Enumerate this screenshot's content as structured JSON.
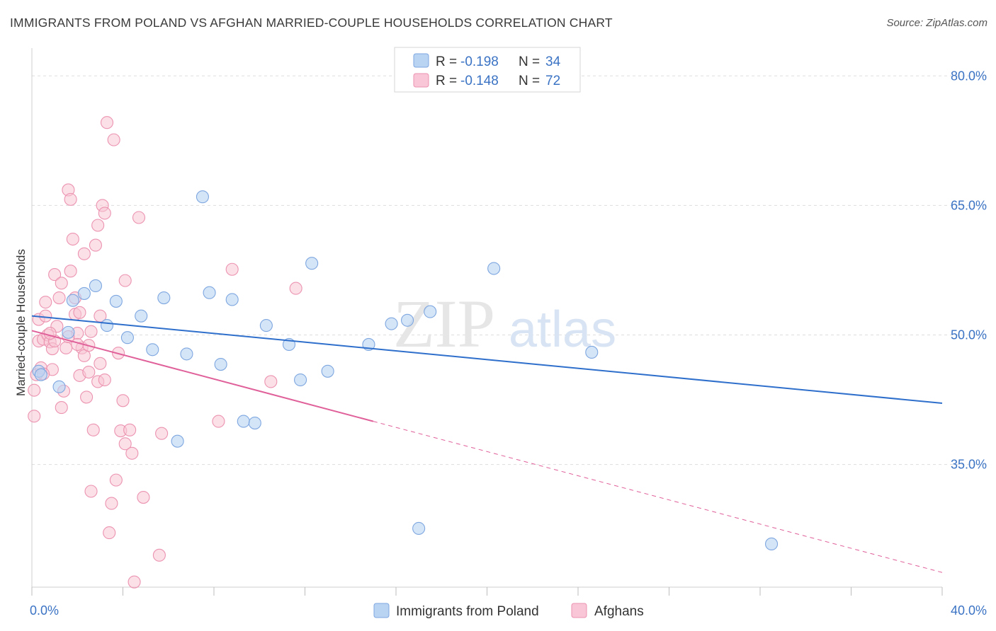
{
  "title": "IMMIGRANTS FROM POLAND VS AFGHAN MARRIED-COUPLE HOUSEHOLDS CORRELATION CHART",
  "source": "Source: ZipAtlas.com",
  "watermark": {
    "zip": "ZIP",
    "atlas": "atlas"
  },
  "colors": {
    "blue_fill": "#b9d3f3",
    "blue_stroke": "#7ea7e0",
    "blue_line": "#2f6fcc",
    "pink_fill": "#f8c6d6",
    "pink_stroke": "#ec93b0",
    "pink_line": "#e0609a",
    "accent_text": "#3b73c4",
    "grid": "#dddddd"
  },
  "legend": {
    "r_label": "R =",
    "n_label": "N =",
    "entries": [
      {
        "r": "-0.198",
        "n": "34"
      },
      {
        "r": "-0.148",
        "n": "72"
      }
    ]
  },
  "chart_data": {
    "type": "scatter",
    "title": "IMMIGRANTS FROM POLAND VS AFGHAN MARRIED-COUPLE HOUSEHOLDS CORRELATION CHART",
    "xlabel": "",
    "ylabel": "Married-couple Households",
    "xlim": [
      0,
      40
    ],
    "ylim": [
      20.8,
      82.4
    ],
    "x_tick_labels": [
      "0.0%",
      "40.0%"
    ],
    "x_tick_values": [
      0,
      40
    ],
    "y_tick_labels": [
      "80.0%",
      "65.0%",
      "50.0%",
      "35.0%"
    ],
    "y_tick_values": [
      80,
      65,
      50,
      35
    ],
    "series": [
      {
        "name": "Immigrants from Poland",
        "color": "blue",
        "points": [
          [
            0.3,
            45.8
          ],
          [
            1.2,
            44.0
          ],
          [
            1.6,
            50.3
          ],
          [
            1.8,
            54.0
          ],
          [
            2.3,
            54.8
          ],
          [
            2.8,
            55.7
          ],
          [
            3.3,
            51.1
          ],
          [
            3.7,
            53.9
          ],
          [
            4.2,
            49.7
          ],
          [
            4.8,
            52.2
          ],
          [
            5.3,
            48.3
          ],
          [
            5.8,
            54.3
          ],
          [
            6.4,
            37.7
          ],
          [
            6.8,
            47.8
          ],
          [
            7.5,
            66.0
          ],
          [
            7.8,
            54.9
          ],
          [
            8.3,
            46.6
          ],
          [
            8.8,
            54.1
          ],
          [
            9.3,
            40.0
          ],
          [
            9.8,
            39.8
          ],
          [
            10.3,
            51.1
          ],
          [
            11.3,
            48.9
          ],
          [
            11.8,
            44.8
          ],
          [
            12.3,
            58.3
          ],
          [
            13.0,
            45.8
          ],
          [
            14.8,
            48.9
          ],
          [
            15.8,
            51.3
          ],
          [
            16.5,
            51.7
          ],
          [
            17.0,
            27.6
          ],
          [
            17.5,
            52.7
          ],
          [
            20.3,
            57.7
          ],
          [
            24.6,
            48.0
          ],
          [
            32.5,
            25.8
          ],
          [
            0.4,
            45.4
          ]
        ],
        "trend": {
          "x0": 0,
          "y0": 52.2,
          "x1": 40,
          "y1": 42.1
        }
      },
      {
        "name": "Afghans",
        "color": "pink",
        "points": [
          [
            0.1,
            40.6
          ],
          [
            0.1,
            43.6
          ],
          [
            0.2,
            45.4
          ],
          [
            0.3,
            49.3
          ],
          [
            0.3,
            51.8
          ],
          [
            0.4,
            46.2
          ],
          [
            0.5,
            49.5
          ],
          [
            0.6,
            53.8
          ],
          [
            0.6,
            52.2
          ],
          [
            0.7,
            50.0
          ],
          [
            0.8,
            49.2
          ],
          [
            0.9,
            46.0
          ],
          [
            0.9,
            48.4
          ],
          [
            1.0,
            57.0
          ],
          [
            1.0,
            49.3
          ],
          [
            1.1,
            51.0
          ],
          [
            1.2,
            54.3
          ],
          [
            1.3,
            41.6
          ],
          [
            1.3,
            56.0
          ],
          [
            1.4,
            43.5
          ],
          [
            1.5,
            48.5
          ],
          [
            1.6,
            66.8
          ],
          [
            1.7,
            65.7
          ],
          [
            1.7,
            57.4
          ],
          [
            1.8,
            61.1
          ],
          [
            1.9,
            52.4
          ],
          [
            1.9,
            54.3
          ],
          [
            2.0,
            50.2
          ],
          [
            2.1,
            45.3
          ],
          [
            2.1,
            52.6
          ],
          [
            2.2,
            48.5
          ],
          [
            2.3,
            47.6
          ],
          [
            2.3,
            59.4
          ],
          [
            2.4,
            42.8
          ],
          [
            2.5,
            45.7
          ],
          [
            2.5,
            48.8
          ],
          [
            2.6,
            50.4
          ],
          [
            2.6,
            31.9
          ],
          [
            2.7,
            39.0
          ],
          [
            2.8,
            60.4
          ],
          [
            2.9,
            62.7
          ],
          [
            2.9,
            44.6
          ],
          [
            3.0,
            46.7
          ],
          [
            3.0,
            52.2
          ],
          [
            3.1,
            65.0
          ],
          [
            3.2,
            44.8
          ],
          [
            3.2,
            64.1
          ],
          [
            3.3,
            74.6
          ],
          [
            3.4,
            27.1
          ],
          [
            3.5,
            30.5
          ],
          [
            3.6,
            72.6
          ],
          [
            3.7,
            33.2
          ],
          [
            3.8,
            47.9
          ],
          [
            3.9,
            38.9
          ],
          [
            4.0,
            42.4
          ],
          [
            4.1,
            56.3
          ],
          [
            4.1,
            37.4
          ],
          [
            4.3,
            39.0
          ],
          [
            4.4,
            36.3
          ],
          [
            4.5,
            21.4
          ],
          [
            4.7,
            63.6
          ],
          [
            4.9,
            31.2
          ],
          [
            5.6,
            24.5
          ],
          [
            5.7,
            38.6
          ],
          [
            8.2,
            40.0
          ],
          [
            8.8,
            57.6
          ],
          [
            10.5,
            44.6
          ],
          [
            11.6,
            55.4
          ],
          [
            2.0,
            48.9
          ],
          [
            1.6,
            49.8
          ],
          [
            0.5,
            45.5
          ],
          [
            0.8,
            50.2
          ]
        ],
        "trend": {
          "x0": 0,
          "y0": 50.5,
          "x1": 15.0,
          "y1": 40.0
        },
        "trend_dashed": {
          "x0": 15.0,
          "y0": 40.0,
          "x1": 40,
          "y1": 22.5
        }
      }
    ],
    "bottom_legend": [
      "Immigrants from Poland",
      "Afghans"
    ]
  }
}
